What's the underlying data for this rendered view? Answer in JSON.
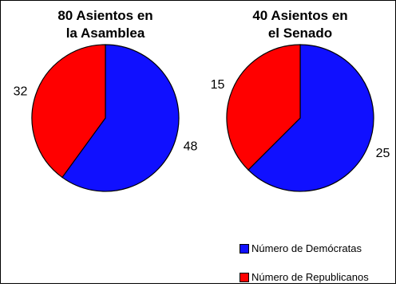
{
  "chart_data": [
    {
      "type": "pie",
      "title_lines": [
        "80 Asientos en",
        "la Asamblea"
      ],
      "categories": [
        "Número de Demócratas",
        "Número de Republicanos"
      ],
      "values": [
        48,
        32
      ],
      "colors": [
        "#1010ff",
        "#ff0000"
      ]
    },
    {
      "type": "pie",
      "title_lines": [
        "40 Asientos en",
        "el Senado"
      ],
      "categories": [
        "Número de Demócratas",
        "Número de Republicanos"
      ],
      "values": [
        25,
        15
      ],
      "colors": [
        "#1010ff",
        "#ff0000"
      ]
    }
  ],
  "legend": {
    "items": [
      {
        "label": "Número de Demócratas",
        "color": "#1010ff"
      },
      {
        "label": "Número de Republicanos",
        "color": "#ff0000"
      }
    ]
  }
}
